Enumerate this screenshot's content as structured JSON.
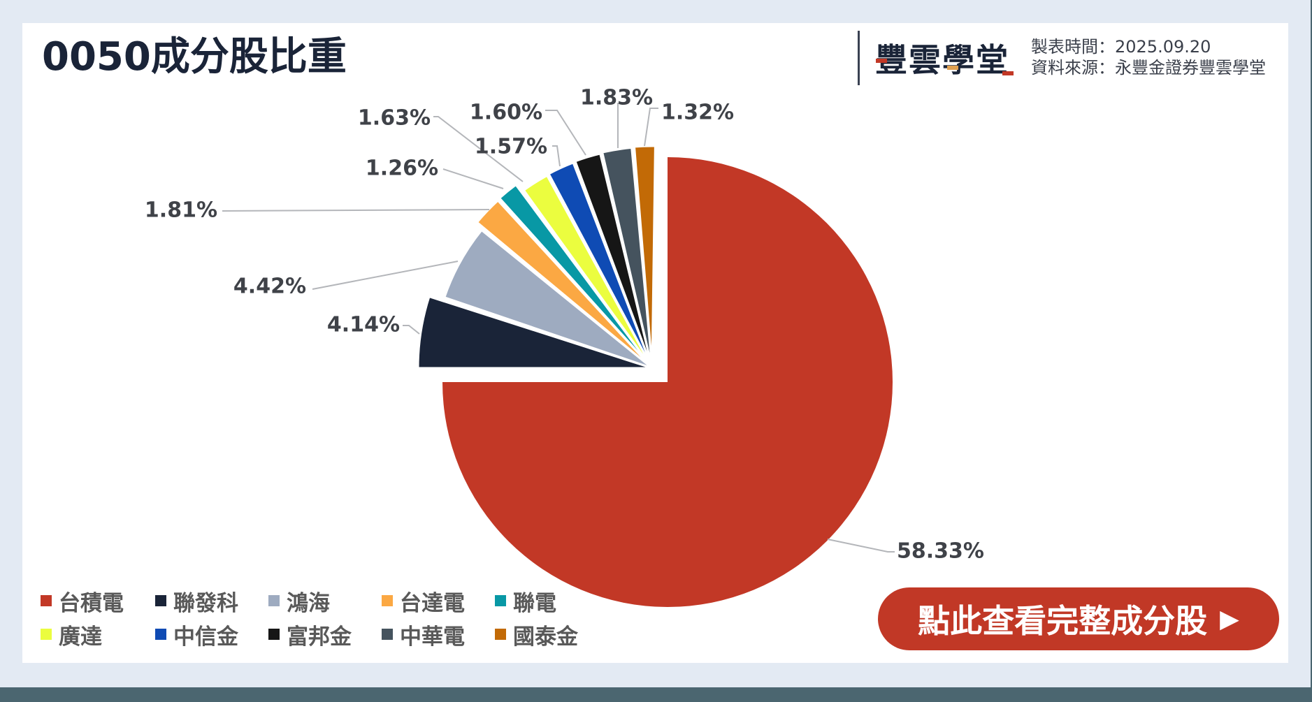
{
  "header": {
    "title": "0050成分股比重",
    "logo_text": "豐雲學堂",
    "meta": {
      "date_label": "製表時間：",
      "date_value": "2025.09.20",
      "source_label": "資料來源：",
      "source_value": "永豐金證券豐雲學堂"
    }
  },
  "cta": {
    "label": "點此查看完整成分股",
    "arrow": "▶"
  },
  "colors": {
    "台積電": "#c23826",
    "聯發科": "#1a2438",
    "鴻海": "#9eabc0",
    "台達電": "#fba843",
    "聯電": "#0898a5",
    "廣達": "#ebfd3f",
    "中信金": "#0f4bb4",
    "富邦金": "#161616",
    "中華電": "#45535e",
    "國泰金": "#c26a06"
  },
  "legend": [
    [
      {
        "label": "台積電",
        "color": "#c23826"
      },
      {
        "label": "聯發科",
        "color": "#1a2438"
      },
      {
        "label": "鴻海",
        "color": "#9eabc0"
      },
      {
        "label": "台達電",
        "color": "#fba843"
      },
      {
        "label": "聯電",
        "color": "#0898a5"
      }
    ],
    [
      {
        "label": "廣達",
        "color": "#ebfd3f"
      },
      {
        "label": "中信金",
        "color": "#0f4bb4"
      },
      {
        "label": "富邦金",
        "color": "#161616"
      },
      {
        "label": "中華電",
        "color": "#45535e"
      },
      {
        "label": "國泰金",
        "color": "#c26a06"
      }
    ]
  ],
  "chart_data": {
    "type": "pie",
    "title": "0050成分股比重",
    "categories": [
      "台積電",
      "聯發科",
      "鴻海",
      "台達電",
      "聯電",
      "廣達",
      "中信金",
      "富邦金",
      "中華電",
      "國泰金"
    ],
    "values": [
      58.33,
      4.14,
      4.42,
      1.81,
      1.26,
      1.63,
      1.57,
      1.6,
      1.83,
      1.32
    ],
    "labels": [
      "58.33%",
      "4.14%",
      "4.42%",
      "1.81%",
      "1.26%",
      "1.63%",
      "1.57%",
      "1.60%",
      "1.83%",
      "1.32%"
    ],
    "unit": "%",
    "legend_position": "bottom-left",
    "notes": "Top-10 holdings only; dominant slice drawn as a three-quarter disc, others exploded as a fan in the upper-left quadrant"
  }
}
